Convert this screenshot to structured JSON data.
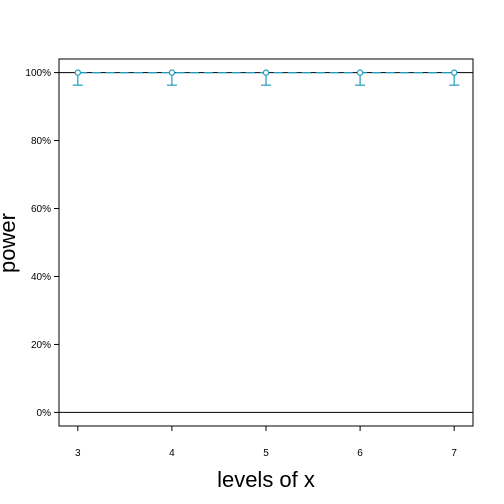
{
  "chart_data": {
    "type": "line",
    "title": "",
    "xlabel": "levels of x",
    "ylabel": "power",
    "x": [
      3,
      4,
      5,
      6,
      7
    ],
    "xlim": [
      2.8,
      7.2
    ],
    "ylim": [
      -0.04,
      1.04
    ],
    "x_ticks": [
      3,
      4,
      5,
      6,
      7
    ],
    "y_ticks": [
      0,
      0.2,
      0.4,
      0.6,
      0.8,
      1.0
    ],
    "y_tick_labels": [
      "0%",
      "20%",
      "40%",
      "60%",
      "80%",
      "100%"
    ],
    "reference_lines": [
      0,
      1
    ],
    "grid": false,
    "series": [
      {
        "values": [
          1.0,
          1.0,
          1.0,
          1.0,
          1.0
        ],
        "lower": [
          0.963,
          0.963,
          0.963,
          0.963,
          0.963
        ],
        "upper": [
          1.0,
          1.0,
          1.0,
          1.0,
          1.0
        ],
        "line_style": "dashed",
        "marker": "open-circle",
        "color": "#1f9bbf"
      }
    ]
  },
  "colors": {
    "series": "#1f9bbf",
    "axis": "#000000"
  }
}
